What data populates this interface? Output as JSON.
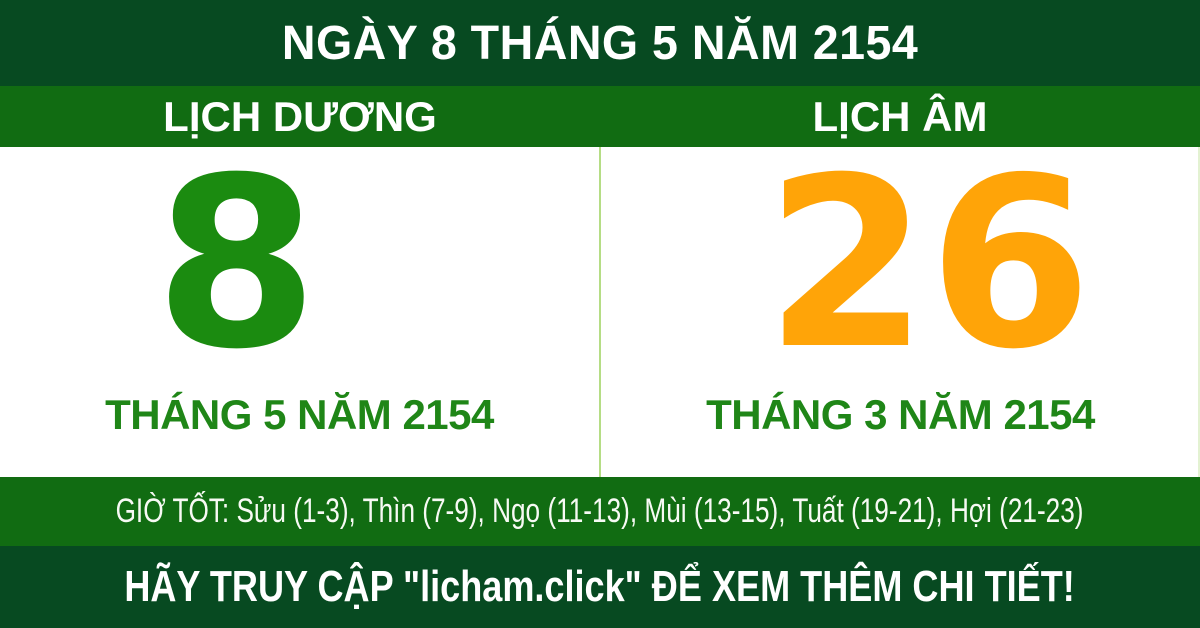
{
  "colors": {
    "dark_green": "#074a21",
    "bright_green": "#116c12",
    "solar_green": "#1b8b10",
    "month_green": "#1f8617",
    "lunar_orange": "#ffa408",
    "divider_green": "#b5dd85"
  },
  "header": {
    "title": "NGÀY 8 THÁNG 5 NĂM 2154"
  },
  "tabs": {
    "solar_label": "LỊCH DƯƠNG",
    "lunar_label": "LỊCH ÂM"
  },
  "solar": {
    "day": "8",
    "month_year": "THÁNG 5 NĂM 2154"
  },
  "lunar": {
    "day": "26",
    "month_year": "THÁNG 3 NĂM 2154"
  },
  "good_hours": {
    "text": "GIỜ TỐT: Sửu (1-3), Thìn (7-9), Ngọ (11-13), Mùi (13-15), Tuất (19-21), Hợi (21-23)"
  },
  "footer": {
    "cta": "HÃY TRUY CẬP \"licham.click\" ĐỂ XEM THÊM CHI TIẾT!"
  }
}
